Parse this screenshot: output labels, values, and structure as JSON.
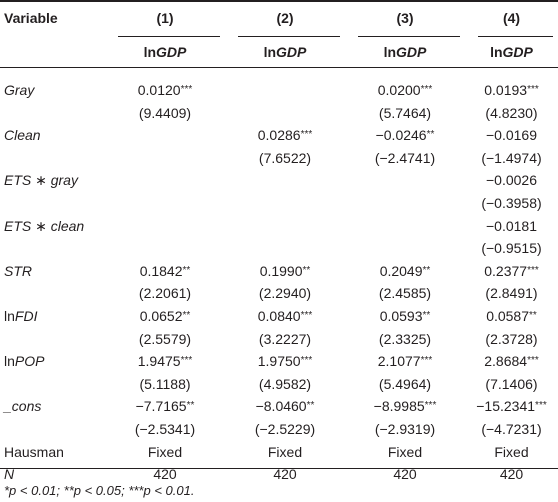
{
  "table": {
    "header": [
      "Variable",
      "(1)",
      "(2)",
      "(3)",
      "(4)"
    ],
    "subheader": [
      {
        "plain": "ln",
        "italic": "GDP"
      },
      {
        "plain": "ln",
        "italic": "GDP"
      },
      {
        "plain": "ln",
        "italic": "GDP"
      },
      {
        "plain": "ln",
        "italic": "GDP"
      }
    ],
    "rows": [
      {
        "name": {
          "italic": "Gray"
        },
        "cells": [
          "0.0120***",
          null,
          "0.0200***",
          "0.0193***"
        ]
      },
      {
        "name": null,
        "cells": [
          "(9.4409)",
          null,
          "(5.7464)",
          "(4.8230)"
        ]
      },
      {
        "name": {
          "italic": "Clean"
        },
        "cells": [
          null,
          "0.0286***",
          "−0.0246**",
          "−0.0169"
        ]
      },
      {
        "name": null,
        "cells": [
          null,
          "(7.6522)",
          "(−2.4741)",
          "(−1.4974)"
        ]
      },
      {
        "name": {
          "italic": "ETS ∗ gray"
        },
        "cells": [
          null,
          null,
          null,
          "−0.0026"
        ]
      },
      {
        "name": null,
        "cells": [
          null,
          null,
          null,
          "(−0.3958)"
        ]
      },
      {
        "name": {
          "italic": "ETS ∗ clean"
        },
        "cells": [
          null,
          null,
          null,
          "−0.0181"
        ]
      },
      {
        "name": null,
        "cells": [
          null,
          null,
          null,
          "(−0.9515)"
        ]
      },
      {
        "name": {
          "italic": "STR"
        },
        "cells": [
          "0.1842**",
          "0.1990**",
          "0.2049**",
          "0.2377***"
        ]
      },
      {
        "name": null,
        "cells": [
          "(2.2061)",
          "(2.2940)",
          "(2.4585)",
          "(2.8491)"
        ]
      },
      {
        "name": {
          "plain": "ln",
          "italic": "FDI"
        },
        "cells": [
          "0.0652**",
          "0.0840***",
          "0.0593**",
          "0.0587**"
        ]
      },
      {
        "name": null,
        "cells": [
          "(2.5579)",
          "(3.2227)",
          "(2.3325)",
          "(2.3728)"
        ]
      },
      {
        "name": {
          "plain": "ln",
          "italic": "POP"
        },
        "cells": [
          "1.9475***",
          "1.9750***",
          "2.1077***",
          "2.8684***"
        ]
      },
      {
        "name": null,
        "cells": [
          "(5.1188)",
          "(4.9582)",
          "(5.4964)",
          "(7.1406)"
        ]
      },
      {
        "name": {
          "italic": "_cons"
        },
        "cells": [
          "−7.7165**",
          "−8.0460**",
          "−8.9985***",
          "−15.2341***"
        ]
      },
      {
        "name": null,
        "cells": [
          "(−2.5341)",
          "(−2.5229)",
          "(−2.9319)",
          "(−4.7231)"
        ]
      },
      {
        "name": {
          "plain": "Hausman"
        },
        "cells": [
          "Fixed",
          "Fixed",
          "Fixed",
          "Fixed"
        ]
      },
      {
        "name": {
          "italic": "N"
        },
        "cells": [
          "420",
          "420",
          "420",
          "420"
        ]
      }
    ],
    "footnote": "*p < 0.01; **p < 0.05; ***p < 0.01."
  }
}
